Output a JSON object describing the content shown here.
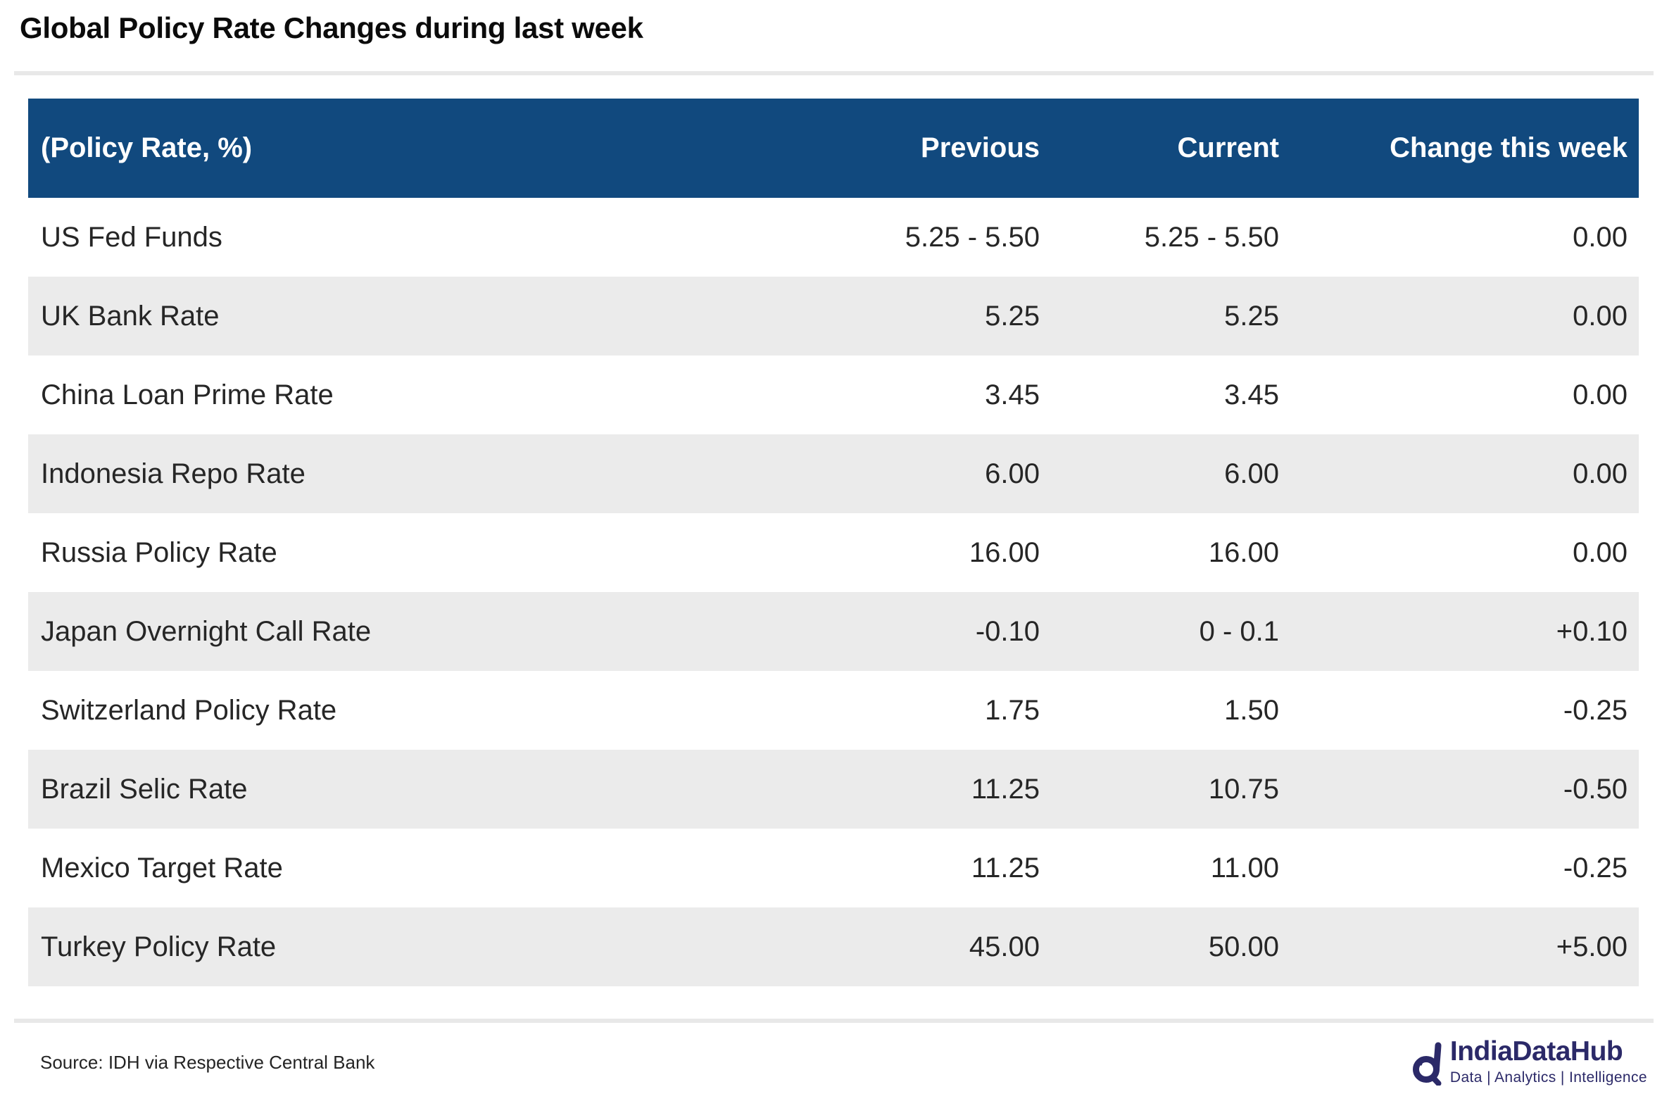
{
  "title": "Global Policy Rate Changes during last week",
  "chart_data": {
    "type": "table",
    "title": "Global Policy Rate Changes during last week",
    "columns": [
      "(Policy Rate, %)",
      "Previous",
      "Current",
      "Change this week"
    ],
    "rows": [
      [
        "US Fed Funds",
        "5.25 - 5.50",
        "5.25 - 5.50",
        "0.00"
      ],
      [
        "UK Bank Rate",
        "5.25",
        "5.25",
        "0.00"
      ],
      [
        "China Loan Prime Rate",
        "3.45",
        "3.45",
        "0.00"
      ],
      [
        "Indonesia Repo Rate",
        "6.00",
        "6.00",
        "0.00"
      ],
      [
        "Russia Policy Rate",
        "16.00",
        "16.00",
        "0.00"
      ],
      [
        "Japan Overnight Call Rate",
        "-0.10",
        "0 - 0.1",
        "+0.10"
      ],
      [
        "Switzerland Policy Rate",
        "1.75",
        "1.50",
        "-0.25"
      ],
      [
        "Brazil Selic Rate",
        "11.25",
        "10.75",
        "-0.50"
      ],
      [
        "Mexico Target Rate",
        "11.25",
        "11.00",
        "-0.25"
      ],
      [
        "Turkey Policy Rate",
        "45.00",
        "50.00",
        "+5.00"
      ]
    ],
    "layout": {
      "striped_rows": true,
      "stripe_starts_on_second_row": true,
      "numeric_columns_right_aligned": true
    }
  },
  "footer": {
    "source": "Source: IDH via Respective Central Bank"
  },
  "logo": {
    "name": "IndiaDataHub",
    "tagline": "Data | Analytics | Intelligence"
  },
  "colors": {
    "header_background": "#11497e",
    "header_text": "#ffffff",
    "row_stripe": "#ebebeb",
    "body_text": "#262626",
    "title_text": "#0b0b0b",
    "divider": "#e8e8e8",
    "logo_navy": "#2b2968"
  }
}
